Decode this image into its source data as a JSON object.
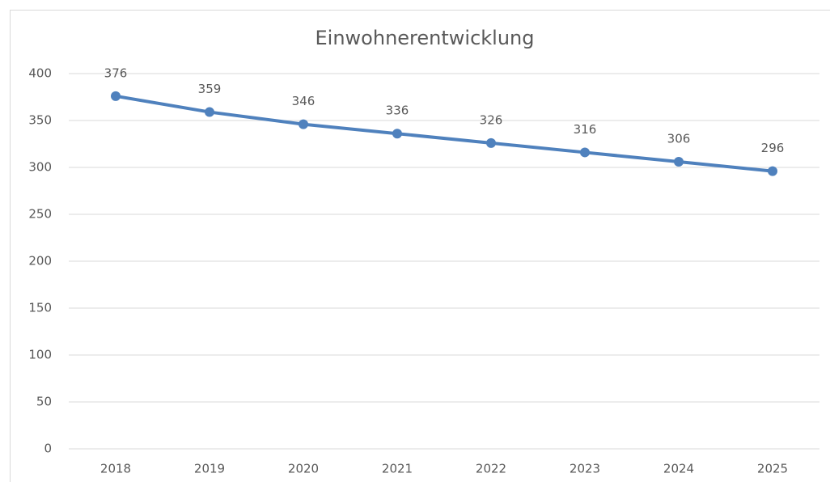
{
  "chart_data": {
    "type": "line",
    "title": "Einwohnerentwicklung",
    "categories": [
      "2018",
      "2019",
      "2020",
      "2021",
      "2022",
      "2023",
      "2024",
      "2025"
    ],
    "series": [
      {
        "color": "#4f81bd",
        "values": [
          376,
          359,
          346,
          336,
          326,
          316,
          306,
          296
        ]
      }
    ],
    "ylim": [
      0,
      400
    ],
    "yticks": [
      0,
      50,
      100,
      150,
      200,
      250,
      300,
      350,
      400
    ],
    "grid": true
  }
}
